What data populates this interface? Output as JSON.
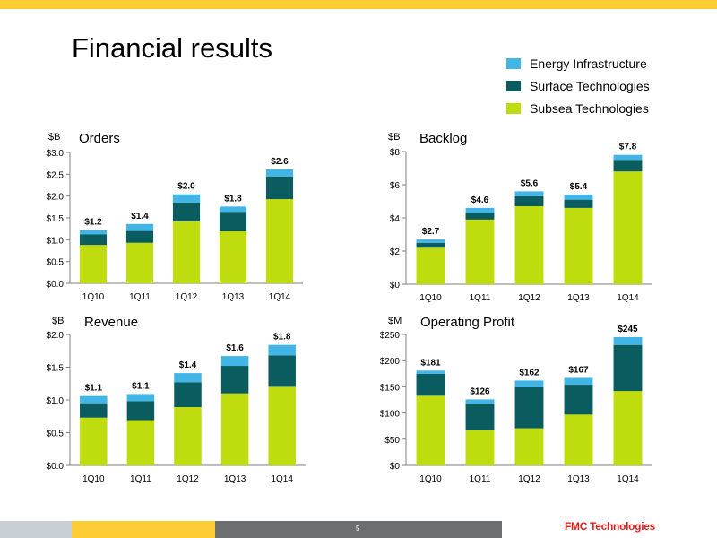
{
  "page": {
    "title": "Financial results",
    "page_number": "5",
    "logo_text": "FMC Technologies"
  },
  "colors": {
    "energy_infrastructure": "#41b6e6",
    "surface_technologies": "#0a5c5f",
    "subsea_technologies": "#bfdd0e",
    "top_bar": "#fecd36",
    "footer_light": "#c8cfd4",
    "footer_yellow": "#fecd36",
    "footer_gray": "#6c6e70",
    "logo_red": "#e3211c"
  },
  "legend": [
    {
      "label": "Energy Infrastructure",
      "color": "#41b6e6"
    },
    {
      "label": "Surface Technologies",
      "color": "#0a5c5f"
    },
    {
      "label": "Subsea Technologies",
      "color": "#bfdd0e"
    }
  ],
  "chart_data": [
    {
      "type": "bar",
      "stacked": true,
      "title": "Orders",
      "unit_label": "$B",
      "categories": [
        "1Q10",
        "1Q11",
        "1Q12",
        "1Q13",
        "1Q14"
      ],
      "series": [
        {
          "name": "Subsea Technologies",
          "values": [
            0.88,
            0.93,
            1.42,
            1.19,
            1.93
          ]
        },
        {
          "name": "Surface Technologies",
          "values": [
            0.24,
            0.27,
            0.43,
            0.45,
            0.52
          ]
        },
        {
          "name": "Energy Infrastructure",
          "values": [
            0.1,
            0.16,
            0.19,
            0.12,
            0.16
          ]
        }
      ],
      "data_labels": [
        "$1.2",
        "$1.4",
        "$2.0",
        "$1.8",
        "$2.6"
      ],
      "ylim": [
        0,
        3.0
      ],
      "yticks": [
        0,
        0.5,
        1.0,
        1.5,
        2.0,
        2.5,
        3.0
      ],
      "ytick_labels": [
        "$0.0",
        "$0.5",
        "$1.0",
        "$1.5",
        "$2.0",
        "$2.5",
        "$3.0"
      ],
      "grid": false
    },
    {
      "type": "bar",
      "stacked": true,
      "title": "Backlog",
      "unit_label": "$B",
      "categories": [
        "1Q10",
        "1Q11",
        "1Q12",
        "1Q13",
        "1Q14"
      ],
      "series": [
        {
          "name": "Subsea Technologies",
          "values": [
            2.2,
            3.9,
            4.7,
            4.6,
            6.8
          ]
        },
        {
          "name": "Surface Technologies",
          "values": [
            0.3,
            0.4,
            0.6,
            0.5,
            0.7
          ]
        },
        {
          "name": "Energy Infrastructure",
          "values": [
            0.2,
            0.3,
            0.3,
            0.3,
            0.3
          ]
        }
      ],
      "data_labels": [
        "$2.7",
        "$4.6",
        "$5.6",
        "$5.4",
        "$7.8"
      ],
      "ylim": [
        0,
        8
      ],
      "yticks": [
        0,
        2,
        4,
        6,
        8
      ],
      "ytick_labels": [
        "$0",
        "$2",
        "$4",
        "$6",
        "$8"
      ],
      "grid": false
    },
    {
      "type": "bar",
      "stacked": true,
      "title": "Revenue",
      "unit_label": "$B",
      "categories": [
        "1Q10",
        "1Q11",
        "1Q12",
        "1Q13",
        "1Q14"
      ],
      "series": [
        {
          "name": "Subsea Technologies",
          "values": [
            0.73,
            0.69,
            0.89,
            1.1,
            1.2
          ]
        },
        {
          "name": "Surface Technologies",
          "values": [
            0.22,
            0.29,
            0.38,
            0.42,
            0.48
          ]
        },
        {
          "name": "Energy Infrastructure",
          "values": [
            0.11,
            0.11,
            0.14,
            0.15,
            0.16
          ]
        }
      ],
      "data_labels": [
        "$1.1",
        "$1.1",
        "$1.4",
        "$1.6",
        "$1.8"
      ],
      "ylim": [
        0,
        2.0
      ],
      "yticks": [
        0,
        0.5,
        1.0,
        1.5,
        2.0
      ],
      "ytick_labels": [
        "$0.0",
        "$0.5",
        "$1.0",
        "$1.5",
        "$2.0"
      ],
      "grid": false
    },
    {
      "type": "bar",
      "stacked": true,
      "title": "Operating Profit",
      "unit_label": "$M",
      "categories": [
        "1Q10",
        "1Q11",
        "1Q12",
        "1Q13",
        "1Q14"
      ],
      "series": [
        {
          "name": "Subsea Technologies",
          "values": [
            133,
            67,
            71,
            97,
            142
          ]
        },
        {
          "name": "Surface Technologies",
          "values": [
            42,
            51,
            78,
            57,
            88
          ]
        },
        {
          "name": "Energy Infrastructure",
          "values": [
            6,
            8,
            13,
            13,
            15
          ]
        }
      ],
      "data_labels": [
        "$181",
        "$126",
        "$162",
        "$167",
        "$245"
      ],
      "ylim": [
        0,
        250
      ],
      "yticks": [
        0,
        50,
        100,
        150,
        200,
        250
      ],
      "ytick_labels": [
        "$0",
        "$50",
        "$100",
        "$150",
        "$200",
        "$250"
      ],
      "grid": false
    }
  ]
}
